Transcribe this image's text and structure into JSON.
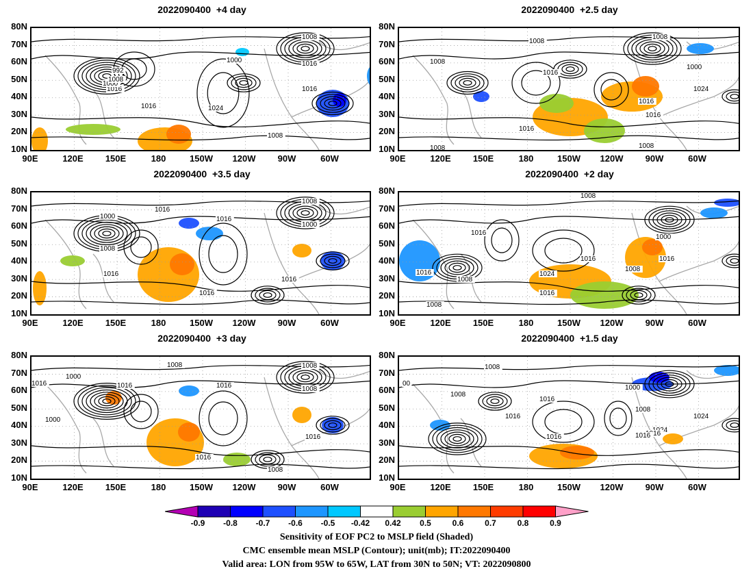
{
  "panels": [
    {
      "title": "2022090400  +4 day",
      "contour_labels": [
        "1008",
        "1016",
        "1000",
        "992",
        "1016",
        "1016",
        "1024",
        "1008",
        "1000",
        "1016",
        "1008"
      ]
    },
    {
      "title": "2022090400  +2.5 day",
      "contour_labels": [
        "1008",
        "1008",
        "1008",
        "1016",
        "1000",
        "1016",
        "1016",
        "1024",
        "1016",
        "1008",
        "1008"
      ]
    },
    {
      "title": "2022090400  +3.5 day",
      "contour_labels": [
        "1000",
        "1016",
        "1008",
        "1016",
        "1016",
        "1008",
        "1000",
        "1016",
        "1016"
      ]
    },
    {
      "title": "2022090400  +2 day",
      "contour_labels": [
        "1008",
        "1016",
        "1000",
        "1016",
        "1016",
        "1008",
        "1024",
        "1016",
        "1008",
        "1016",
        "1008"
      ]
    },
    {
      "title": "2022090400  +3 day",
      "contour_labels": [
        "1008",
        "1008",
        "1000",
        "1016",
        "1016",
        "1016",
        "1008",
        "1000",
        "1016",
        "1016",
        "1008"
      ]
    },
    {
      "title": "2022090400  +1.5 day",
      "contour_labels": [
        "1008",
        "00",
        "1008",
        "1016",
        "1000",
        "1016",
        "1008",
        "1016",
        "1024",
        "1024",
        "1016",
        "1016"
      ]
    }
  ],
  "lat_labels": [
    "80N",
    "70N",
    "60N",
    "50N",
    "40N",
    "30N",
    "20N",
    "10N"
  ],
  "lon_labels": [
    "90E",
    "120E",
    "150E",
    "180",
    "150W",
    "120W",
    "90W",
    "60W"
  ],
  "colorbar": {
    "values": [
      "-0.9",
      "-0.8",
      "-0.7",
      "-0.6",
      "-0.5",
      "-0.42",
      "0.42",
      "0.5",
      "0.6",
      "0.7",
      "0.8",
      "0.9"
    ],
    "colors": [
      "#b400b4",
      "#1e00b4",
      "#0000ff",
      "#1e50ff",
      "#1e96ff",
      "#00c8ff",
      "#ffffff",
      "#9acd32",
      "#ffa500",
      "#ff7800",
      "#ff3c00",
      "#ff0000",
      "#ffa0c8"
    ]
  },
  "caption": {
    "line1": "Sensitivity of EOF PC2 to MSLP field (Shaded)",
    "line2": "CMC ensemble mean MSLP (Contour); unit(mb); IT:2022090400",
    "line3": "Valid area: LON from 95W to 65W, LAT from 30N to 50N; VT: 2022090800"
  }
}
